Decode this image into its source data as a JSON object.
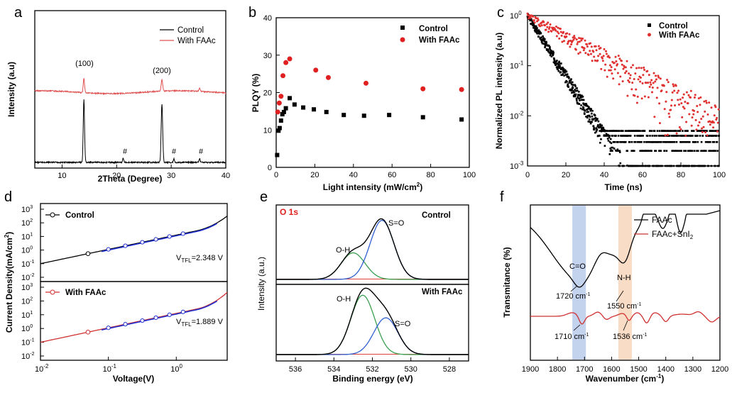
{
  "chart_data": [
    {
      "panel": "a",
      "type": "line",
      "xlabel": "2Theta (Degree)",
      "ylabel": "Intensity (a.u)",
      "xlim": [
        5,
        40
      ],
      "xticks": [
        "10",
        "20",
        "30",
        "40"
      ],
      "legend": [
        "Control",
        "With FAAc"
      ],
      "legend_position": "top-right",
      "colors": {
        "Control": "#000000",
        "With FAAc": "#e05050"
      },
      "peaks": [
        {
          "label": "(100)",
          "x": 14.0
        },
        {
          "label": "(200)",
          "x": 28.3
        }
      ],
      "impurity_marks": [
        {
          "label": "#",
          "x": 21.2
        },
        {
          "label": "#",
          "x": 30.5
        },
        {
          "label": "#",
          "x": 35.2
        }
      ]
    },
    {
      "panel": "b",
      "type": "scatter",
      "xlabel": "Light intensity (mW/cm",
      "xlabel_sup": "2",
      "xlabel_tail": ")",
      "ylabel": "PLQY (%)",
      "xlim": [
        0,
        100
      ],
      "ylim": [
        0,
        40
      ],
      "xticks": [
        "0",
        "20",
        "40",
        "60",
        "80",
        "100"
      ],
      "yticks": [
        "0",
        "10",
        "20",
        "30",
        "40"
      ],
      "legend_position": "top-right",
      "series": [
        {
          "name": "Control",
          "color": "#000000",
          "marker": "square",
          "x": [
            0.5,
            1.2,
            1.8,
            2.5,
            3.2,
            4,
            5,
            7,
            9.5,
            14,
            19.5,
            26,
            35,
            45.5,
            58.5,
            76,
            96
          ],
          "y": [
            3.3,
            9.8,
            10.5,
            12.5,
            14.2,
            14.8,
            15.8,
            18.5,
            16.8,
            16.0,
            15.5,
            14.8,
            14.0,
            13.8,
            14.0,
            13.4,
            12.8
          ]
        },
        {
          "name": "With FAAc",
          "color": "#e02020",
          "marker": "circle",
          "x": [
            0.8,
            1.6,
            2.5,
            3.5,
            5,
            7,
            20.5,
            27,
            46.5,
            76,
            96
          ],
          "y": [
            14.8,
            17.2,
            19.0,
            24.5,
            28.0,
            29.0,
            26.0,
            24.0,
            22.5,
            21.0,
            20.8
          ]
        }
      ]
    },
    {
      "panel": "c",
      "type": "scatter",
      "xlabel": "Time (ns)",
      "ylabel": "Normalized PL intensity (a.u)",
      "xlim": [
        0,
        100
      ],
      "ylim": [
        0.001,
        1
      ],
      "yscale": "log",
      "xticks": [
        "0",
        "20",
        "40",
        "60",
        "80",
        "100"
      ],
      "yticks": [
        "10",
        "10",
        "10",
        "10"
      ],
      "ytick_exps": [
        "-3",
        "-2",
        "-1",
        "0"
      ],
      "legend_position": "top-right",
      "series": [
        {
          "name": "Control",
          "color": "#000000",
          "tau_ns": 7.2
        },
        {
          "name": "With FAAc",
          "color": "#e03030",
          "tau_ns": 20.5
        }
      ]
    },
    {
      "panel": "d",
      "type": "line",
      "xlabel": "Voltage(V)",
      "ylabel": "Current Density(mA/cm",
      "ylabel_sup": "2",
      "ylabel_tail": ")",
      "xscale": "log",
      "yscale": "log",
      "xticks": [
        "10",
        "10",
        "10"
      ],
      "xtick_exps": [
        "-2",
        "-1",
        "0"
      ],
      "yticks": [
        "10",
        "10",
        "10",
        "10",
        "10",
        "10"
      ],
      "ytick_exps": [
        "-2",
        "-1",
        "0",
        "1",
        "2",
        "3"
      ],
      "subplots": [
        {
          "name": "Control",
          "color": "#000000",
          "vtfl_label": "V",
          "vtfl_sub": "TFL",
          "vtfl_value": "=2.348 V"
        },
        {
          "name": "With FAAc",
          "color": "#d03030",
          "vtfl_label": "V",
          "vtfl_sub": "TFL",
          "vtfl_value": "=1.889 V"
        }
      ]
    },
    {
      "panel": "e",
      "type": "line",
      "xlabel": "Binding energy (eV)",
      "ylabel": "Intensity (a.u.)",
      "xlim": [
        537,
        527
      ],
      "xticks": [
        "536",
        "534",
        "532",
        "530",
        "528"
      ],
      "spectrum_label": "O 1s",
      "subplots": [
        {
          "name": "Control",
          "peaks": [
            {
              "label": "O-H",
              "center": 533.0,
              "amp": 0.45
            },
            {
              "label": "S=O",
              "center": 531.5,
              "amp": 1.0
            }
          ]
        },
        {
          "name": "With FAAc",
          "peaks": [
            {
              "label": "O-H",
              "center": 532.5,
              "amp": 1.0
            },
            {
              "label": "S=O",
              "center": 531.3,
              "amp": 0.62
            }
          ]
        }
      ]
    },
    {
      "panel": "f",
      "type": "line",
      "xlabel": "Wavenumber (cm",
      "xlabel_sup": "-1",
      "xlabel_tail": ")",
      "ylabel": "Transmitance (%)",
      "xlim": [
        1900,
        1200
      ],
      "xticks": [
        "1900",
        "1800",
        "1700",
        "1600",
        "1500",
        "1400",
        "1300",
        "1200"
      ],
      "legend_position": "top-right",
      "series": [
        {
          "name": "FAAc",
          "color": "#000000"
        },
        {
          "name": "FAAc+SnI",
          "sub": "2",
          "color": "#d03030"
        }
      ],
      "bands": [
        {
          "label": "C=O",
          "from": 1745,
          "to": 1695,
          "color": "#a9bfe6"
        },
        {
          "label": "N-H",
          "from": 1575,
          "to": 1525,
          "color": "#f7d3b8"
        }
      ],
      "annotations": [
        "1720 cm",
        "1550 cm",
        "1710 cm",
        "1536 cm"
      ],
      "annotation_sup": "-1"
    }
  ]
}
